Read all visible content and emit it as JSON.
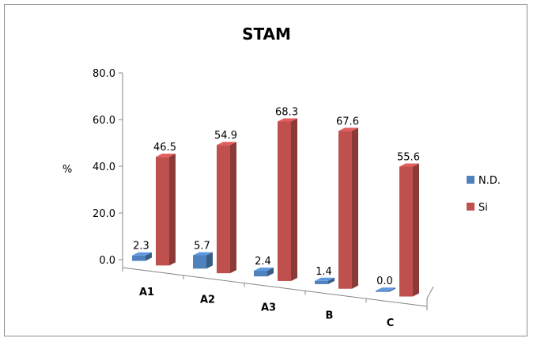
{
  "chart_data": {
    "type": "bar",
    "title": "STAM",
    "ylabel": "%",
    "xlabel": "",
    "ylim": [
      0,
      80
    ],
    "yticks": [
      "0.0",
      "20.0",
      "40.0",
      "60.0",
      "80.0"
    ],
    "categories": [
      "A1",
      "A2",
      "A3",
      "B",
      "C"
    ],
    "series": [
      {
        "name": "N.D.",
        "color": "#4F81BD",
        "values": [
          2.3,
          5.7,
          2.4,
          1.4,
          0.0
        ],
        "labels": [
          "2.3",
          "5.7",
          "2.4",
          "1.4",
          "0.0"
        ]
      },
      {
        "name": "Si",
        "color": "#C0504D",
        "values": [
          46.5,
          54.9,
          68.3,
          67.6,
          55.6
        ],
        "labels": [
          "46.5",
          "54.9",
          "68.3",
          "67.6",
          "55.6"
        ]
      }
    ],
    "legend_position": "right",
    "style": "3d-clustered-column"
  }
}
